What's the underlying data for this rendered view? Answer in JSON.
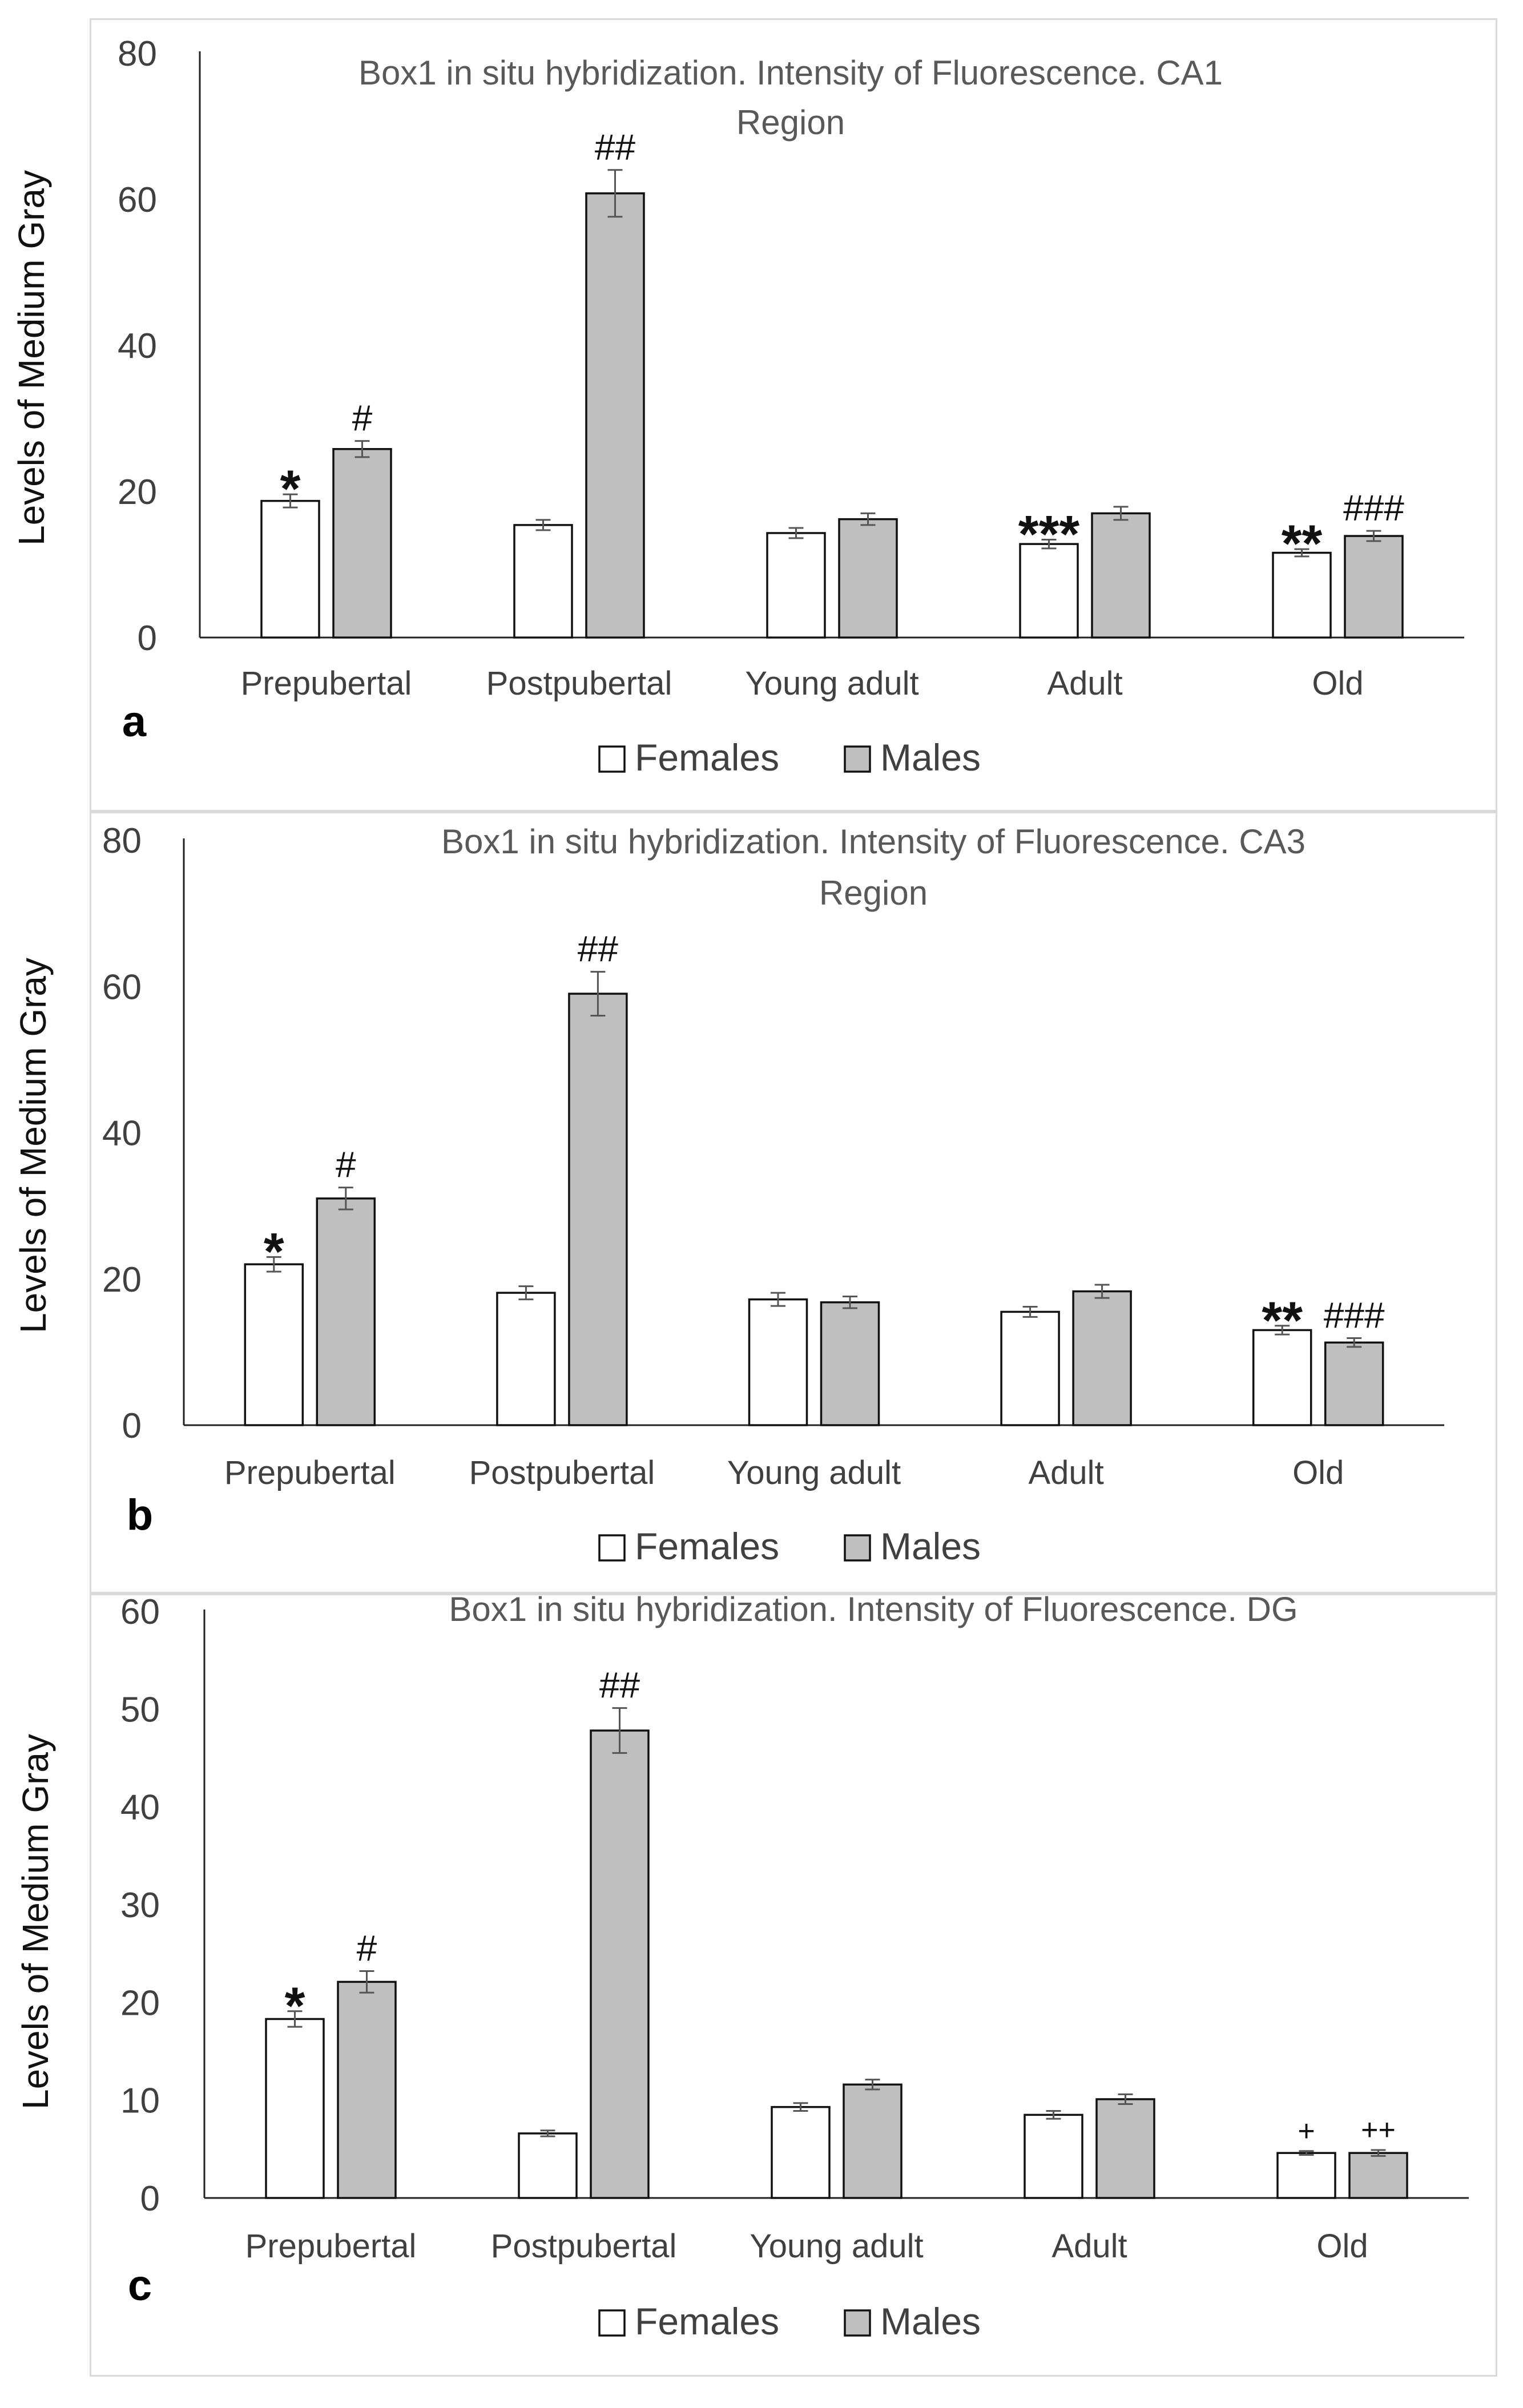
{
  "chart_data": [
    {
      "type": "bar",
      "panel_label": "a",
      "title_line1": "Box1 in situ hybridization. Intensity of Fluorescence. CA1",
      "title_line2": "Region",
      "ylabel": "Levels of Medium Gray",
      "xlabel": "",
      "ylim": [
        0,
        80
      ],
      "yticks": [
        "0",
        "20",
        "40",
        "60",
        "80"
      ],
      "categories": [
        "Prepubertal",
        "Postpubertal",
        "Young adult",
        "Adult",
        "Old"
      ],
      "series": [
        {
          "name": "Females",
          "color": "#ffffff",
          "values": [
            18.7,
            15.4,
            14.3,
            12.8,
            11.6
          ],
          "errors": [
            0.9,
            0.7,
            0.7,
            0.6,
            0.5
          ],
          "annotations": [
            "*",
            "",
            "",
            "***",
            "**"
          ]
        },
        {
          "name": "Males",
          "color": "#bfbfbf",
          "values": [
            25.8,
            60.8,
            16.2,
            17.0,
            13.9
          ],
          "errors": [
            1.1,
            3.2,
            0.8,
            0.9,
            0.7
          ],
          "annotations": [
            "#",
            "##",
            "",
            "",
            "###"
          ]
        }
      ],
      "legend": "bottom",
      "grid": false
    },
    {
      "type": "bar",
      "panel_label": "b",
      "title_line1": "Box1 in situ hybridization. Intensity of Fluorescence. CA3",
      "title_line2": "Region",
      "ylabel": "Levels of Medium Gray",
      "xlabel": "",
      "ylim": [
        0,
        80
      ],
      "yticks": [
        "0",
        "20",
        "40",
        "60",
        "80"
      ],
      "categories": [
        "Prepubertal",
        "Postpubertal",
        "Young adult",
        "Adult",
        "Old"
      ],
      "series": [
        {
          "name": "Females",
          "color": "#ffffff",
          "values": [
            22.0,
            18.1,
            17.2,
            15.5,
            13.0
          ],
          "errors": [
            1.0,
            0.9,
            0.9,
            0.7,
            0.6
          ],
          "annotations": [
            "*",
            "",
            "",
            "",
            "**"
          ]
        },
        {
          "name": "Males",
          "color": "#bfbfbf",
          "values": [
            31.0,
            59.0,
            16.8,
            18.3,
            11.3
          ],
          "errors": [
            1.5,
            3.0,
            0.8,
            0.9,
            0.6
          ],
          "annotations": [
            "#",
            "##",
            "",
            "",
            "###"
          ]
        }
      ],
      "legend": "bottom",
      "grid": false
    },
    {
      "type": "bar",
      "panel_label": "c",
      "title_line1": "Box1 in situ hybridization. Intensity of Fluorescence. DG",
      "title_line2": "",
      "ylabel": "Levels of Medium Gray",
      "xlabel": "",
      "ylim": [
        0,
        60
      ],
      "yticks": [
        "0",
        "10",
        "20",
        "30",
        "40",
        "50",
        "60"
      ],
      "categories": [
        "Prepubertal",
        "Postpubertal",
        "Young adult",
        "Adult",
        "Old"
      ],
      "series": [
        {
          "name": "Females",
          "color": "#ffffff",
          "values": [
            18.3,
            6.6,
            9.3,
            8.5,
            4.6
          ],
          "errors": [
            0.8,
            0.3,
            0.4,
            0.4,
            0.2
          ],
          "annotations": [
            "*",
            "",
            "",
            "",
            "+"
          ]
        },
        {
          "name": "Males",
          "color": "#bfbfbf",
          "values": [
            22.1,
            47.8,
            11.6,
            10.1,
            4.6
          ],
          "errors": [
            1.1,
            2.3,
            0.5,
            0.5,
            0.3
          ],
          "annotations": [
            "#",
            "##",
            "",
            "",
            "++"
          ]
        }
      ],
      "legend": "bottom",
      "grid": false
    }
  ]
}
